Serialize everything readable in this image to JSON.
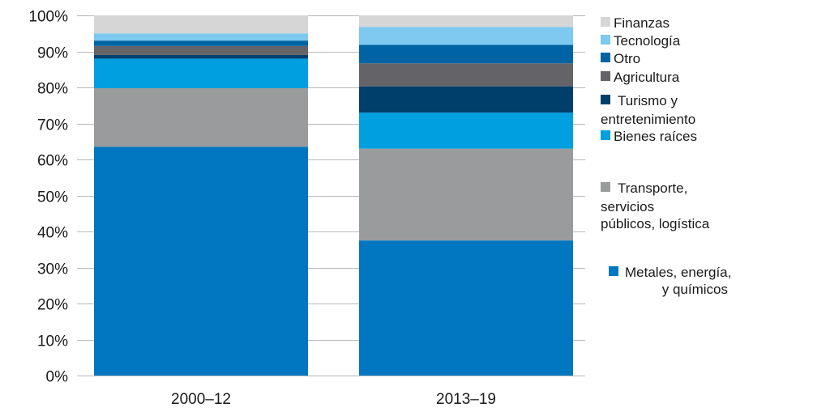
{
  "chart_data": {
    "type": "bar",
    "stacked": true,
    "categories": [
      "2000–12",
      "2013–19"
    ],
    "ylim": [
      0,
      100
    ],
    "yticks": [
      0,
      10,
      20,
      30,
      40,
      50,
      60,
      70,
      80,
      90,
      100
    ],
    "ytick_labels": [
      "0%",
      "10%",
      "20%",
      "30%",
      "40%",
      "50%",
      "60%",
      "70%",
      "80%",
      "90%",
      "100%"
    ],
    "grid": "horizontal",
    "legend_position": "right",
    "series": [
      {
        "name": "Metales, energía, y químicos",
        "legend_lines": [
          "Metales, energía,",
          "y químicos"
        ],
        "color": "#0077c0",
        "values": [
          63.5,
          37.5
        ]
      },
      {
        "name": "Transporte, servicios públicos, logística",
        "legend_lines": [
          "Transporte,",
          "servicios",
          "públicos, logística"
        ],
        "color": "#9a9b9d",
        "values": [
          16.3,
          25.5
        ]
      },
      {
        "name": "Bienes raíces",
        "legend_lines": [
          "Bienes raíces"
        ],
        "color": "#009fdf",
        "values": [
          8.2,
          10.0
        ]
      },
      {
        "name": "Turismo y entretenimiento",
        "legend_lines": [
          "Turismo y",
          "entretenimiento"
        ],
        "color": "#003e6c",
        "values": [
          1.0,
          7.3
        ]
      },
      {
        "name": "Agricultura",
        "legend_lines": [
          "Agricultura"
        ],
        "color": "#646468",
        "values": [
          2.5,
          6.4
        ]
      },
      {
        "name": "Otro",
        "legend_lines": [
          "Otro"
        ],
        "color": "#0064a4",
        "values": [
          1.5,
          5.1
        ]
      },
      {
        "name": "Tecnología",
        "legend_lines": [
          "Tecnología"
        ],
        "color": "#7dc9ef",
        "values": [
          2.0,
          5.0
        ]
      },
      {
        "name": "Finanzas",
        "legend_lines": [
          "Finanzas"
        ],
        "color": "#d6d6d6",
        "values": [
          5.0,
          3.2
        ]
      }
    ]
  }
}
